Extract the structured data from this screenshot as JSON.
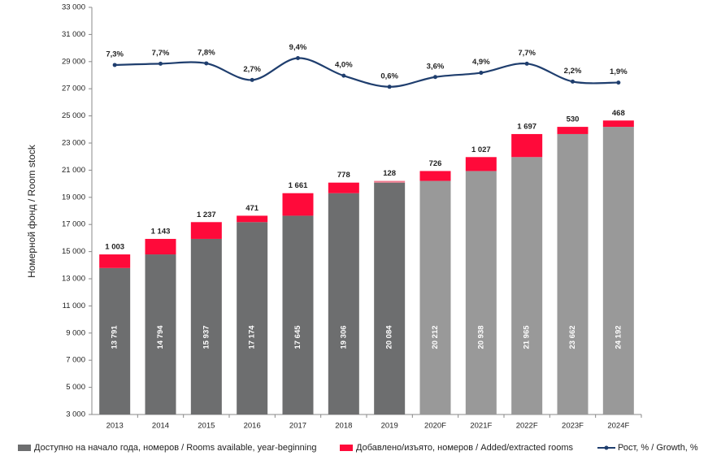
{
  "chart_data": {
    "type": "stacked-bar-line",
    "y_label": "Номерной фонд / Room stock",
    "categories": [
      "2013",
      "2014",
      "2015",
      "2016",
      "2017",
      "2018",
      "2019",
      "2020F",
      "2021F",
      "2022F",
      "2023F",
      "2024F"
    ],
    "ylim": [
      3000,
      33000
    ],
    "yticks": [
      {
        "value": 3000,
        "label": "3 000"
      },
      {
        "value": 5000,
        "label": "5 000"
      },
      {
        "value": 7000,
        "label": "7 000"
      },
      {
        "value": 9000,
        "label": "9 000"
      },
      {
        "value": 11000,
        "label": "11 000"
      },
      {
        "value": 13000,
        "label": "13 000"
      },
      {
        "value": 15000,
        "label": "15 000"
      },
      {
        "value": 17000,
        "label": "17 000"
      },
      {
        "value": 19000,
        "label": "19 000"
      },
      {
        "value": 21000,
        "label": "21 000"
      },
      {
        "value": 23000,
        "label": "23 000"
      },
      {
        "value": 25000,
        "label": "25 000"
      },
      {
        "value": 27000,
        "label": "27 000"
      },
      {
        "value": 29000,
        "label": "29 000"
      },
      {
        "value": 31000,
        "label": "31 000"
      },
      {
        "value": 33000,
        "label": "33 000"
      }
    ],
    "y2lim": [
      -100,
      25
    ],
    "series": [
      {
        "name": "Доступно на начало года, номеров / Rooms available, year-beginning",
        "color": "#6d6e6f",
        "colors": [
          "#6d6e6f",
          "#6d6e6f",
          "#6d6e6f",
          "#6d6e6f",
          "#6d6e6f",
          "#6d6e6f",
          "#6d6e6f",
          "#999999",
          "#999999",
          "#999999",
          "#999999",
          "#999999"
        ],
        "values": [
          13791,
          14794,
          15937,
          17174,
          17645,
          19306,
          20084,
          20212,
          20938,
          21965,
          23662,
          24192
        ],
        "value_labels": [
          "13 791",
          "14 794",
          "15 937",
          "17 174",
          "17 645",
          "19 306",
          "20 084",
          "20 212",
          "20 938",
          "21 965",
          "23 662",
          "24 192"
        ]
      },
      {
        "name": "Добавлено/изъято, номеров / Added/extracted rooms",
        "color": "#ff0a3a",
        "colors": [
          "#ff0a3a",
          "#ff0a3a",
          "#ff0a3a",
          "#ff0a3a",
          "#ff0a3a",
          "#ff0a3a",
          "#f07a8e",
          "#ff0a3a",
          "#ff0a3a",
          "#ff0a3a",
          "#ff0a3a",
          "#ff0a3a"
        ],
        "values": [
          1003,
          1143,
          1237,
          471,
          1661,
          778,
          128,
          726,
          1027,
          1697,
          530,
          468
        ],
        "value_labels": [
          "1 003",
          "1 143",
          "1 237",
          "471",
          "1 661",
          "778",
          "128",
          "726",
          "1 027",
          "1 697",
          "530",
          "468"
        ]
      },
      {
        "name": "Рост, % / Growth, %",
        "color": "#1f3e6e",
        "axis": "y2",
        "values": [
          7.3,
          7.7,
          7.8,
          2.7,
          9.4,
          4.0,
          0.6,
          3.6,
          4.9,
          7.7,
          2.2,
          1.9
        ],
        "value_labels": [
          "7,3%",
          "7,7%",
          "7,8%",
          "2,7%",
          "9,4%",
          "4,0%",
          "0,6%",
          "3,6%",
          "4,9%",
          "7,7%",
          "2,2%",
          "1,9%"
        ]
      }
    ]
  }
}
